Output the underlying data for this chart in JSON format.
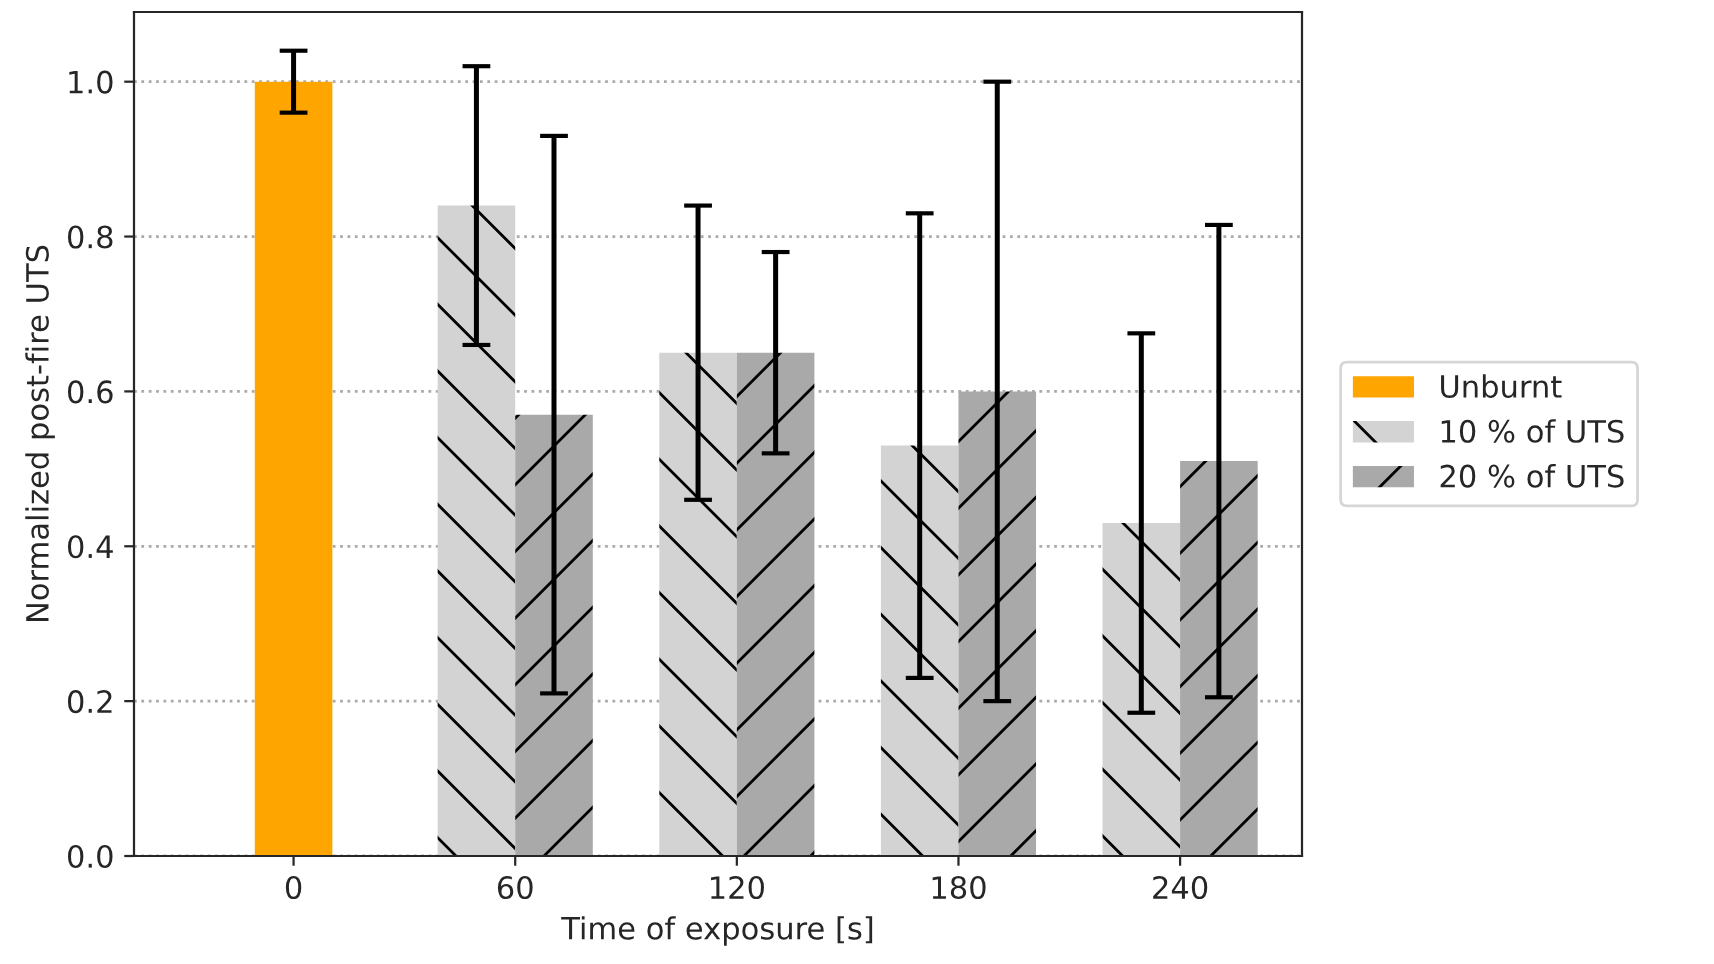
{
  "chart_data": {
    "type": "bar",
    "xlabel": "Time of exposure [s]",
    "ylabel": "Normalized post-fire UTS",
    "categories": [
      "0",
      "60",
      "120",
      "180",
      "240"
    ],
    "series": [
      {
        "name": "Unburnt",
        "color": "#ffa500",
        "values": [
          1.0,
          null,
          null,
          null,
          null
        ],
        "errors": [
          0.04,
          null,
          null,
          null,
          null
        ]
      },
      {
        "name": "10 % of UTS",
        "color": "#d3d3d3",
        "values": [
          null,
          0.84,
          0.65,
          0.53,
          0.43
        ],
        "errors": [
          null,
          0.18,
          0.19,
          0.3,
          0.245
        ]
      },
      {
        "name": "20 % of UTS",
        "color": "#a9a9a9",
        "values": [
          null,
          0.57,
          0.65,
          0.6,
          0.51
        ],
        "errors": [
          null,
          0.36,
          0.13,
          0.4,
          0.305
        ]
      }
    ],
    "ylim": [
      0,
      1.09
    ],
    "yticks": [
      {
        "value": 0,
        "label": "0.0"
      },
      0.2,
      0.4,
      0.6,
      0.8,
      {
        "value": 1,
        "label": "1.0"
      }
    ],
    "grid": "y",
    "legend": "right"
  }
}
